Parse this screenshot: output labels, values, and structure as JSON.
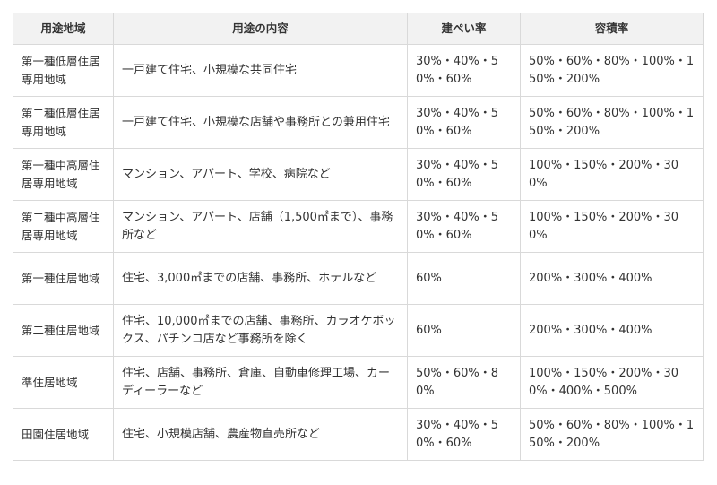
{
  "table": {
    "headers": [
      "用途地域",
      "用途の内容",
      "建ぺい率",
      "容積率"
    ],
    "rows": [
      {
        "zone": "第一種低層住居専用地域",
        "content": "一戸建て住宅、小規模な共同住宅",
        "coverage": "30%・40%・50%・60%",
        "far": "50%・60%・80%・100%・150%・200%"
      },
      {
        "zone": "第二種低層住居専用地域",
        "content": "一戸建て住宅、小規模な店舗や事務所との兼用住宅",
        "coverage": "30%・40%・50%・60%",
        "far": "50%・60%・80%・100%・150%・200%"
      },
      {
        "zone": "第一種中高層住居専用地域",
        "content": "マンション、アパート、学校、病院など",
        "coverage": "30%・40%・50%・60%",
        "far": "100%・150%・200%・300%"
      },
      {
        "zone": "第二種中高層住居専用地域",
        "content": "マンション、アパート、店舗（1,500㎡まで）、事務所など",
        "coverage": "30%・40%・50%・60%",
        "far": "100%・150%・200%・300%"
      },
      {
        "zone": "第一種住居地域",
        "content": "住宅、3,000㎡までの店舗、事務所、ホテルなど",
        "coverage": "60%",
        "far": "200%・300%・400%"
      },
      {
        "zone": "第二種住居地域",
        "content": "住宅、10,000㎡までの店舗、事務所、カラオケボックス、パチンコ店など事務所を除く",
        "coverage": "60%",
        "far": "200%・300%・400%"
      },
      {
        "zone": "準住居地域",
        "content": "住宅、店舗、事務所、倉庫、自動車修理工場、カーディーラーなど",
        "coverage": "50%・60%・80%",
        "far": "100%・150%・200%・300%・400%・500%"
      },
      {
        "zone": "田園住居地域",
        "content": "住宅、小規模店舗、農産物直売所など",
        "coverage": "30%・40%・50%・60%",
        "far": "50%・60%・80%・100%・150%・200%"
      }
    ]
  }
}
